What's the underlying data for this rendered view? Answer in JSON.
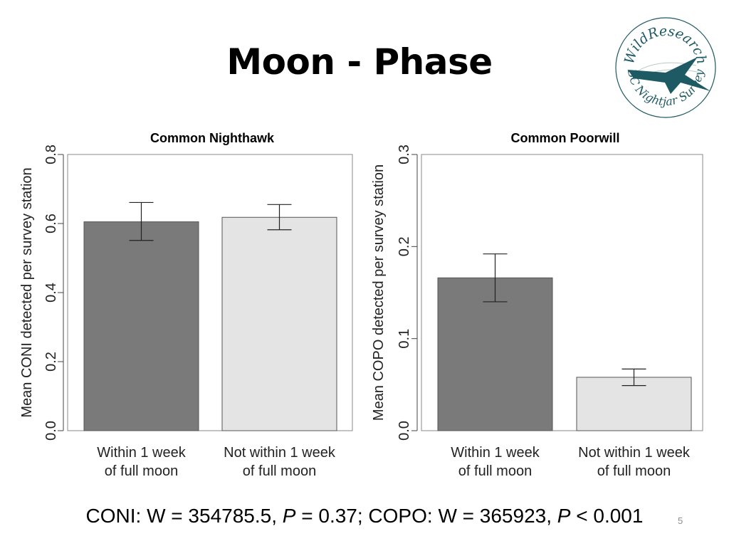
{
  "slide": {
    "title": "Moon - Phase",
    "page_number": "5",
    "footer": {
      "part1": "CONI: W = 354785.5, ",
      "p1_label": "P",
      "part2": " = 0.37; COPO: W = 365923, ",
      "p2_label": "P",
      "part3": " < 0.001"
    },
    "logo": {
      "text_top": "WildResearch",
      "text_bottom": "BC Nightjar Survey",
      "color": "#1e5a63"
    }
  },
  "chart_data": [
    {
      "type": "bar",
      "title": "Common Nighthawk",
      "ylabel": "Mean CONI detected per survey station",
      "categories": [
        [
          "Within 1 week",
          "of full moon"
        ],
        [
          "Not within 1 week",
          "of full moon"
        ]
      ],
      "values": [
        0.605,
        0.618
      ],
      "error_low": [
        0.551,
        0.582
      ],
      "error_high": [
        0.661,
        0.655
      ],
      "colors": [
        "#7a7a7a",
        "#e4e4e4"
      ],
      "ylim": [
        0,
        0.8
      ],
      "yticks": [
        "0.0",
        "0.2",
        "0.4",
        "0.6",
        "0.8"
      ],
      "ytick_values": [
        0,
        0.2,
        0.4,
        0.6,
        0.8
      ]
    },
    {
      "type": "bar",
      "title": "Common Poorwill",
      "ylabel": "Mean COPO detected per survey station",
      "categories": [
        [
          "Within 1 week",
          "of full moon"
        ],
        [
          "Not within 1 week",
          "of full moon"
        ]
      ],
      "values": [
        0.166,
        0.058
      ],
      "error_low": [
        0.14,
        0.049
      ],
      "error_high": [
        0.192,
        0.067
      ],
      "colors": [
        "#7a7a7a",
        "#e4e4e4"
      ],
      "ylim": [
        0,
        0.3
      ],
      "yticks": [
        "0.0",
        "0.1",
        "0.2",
        "0.3"
      ],
      "ytick_values": [
        0,
        0.1,
        0.2,
        0.3
      ]
    }
  ]
}
